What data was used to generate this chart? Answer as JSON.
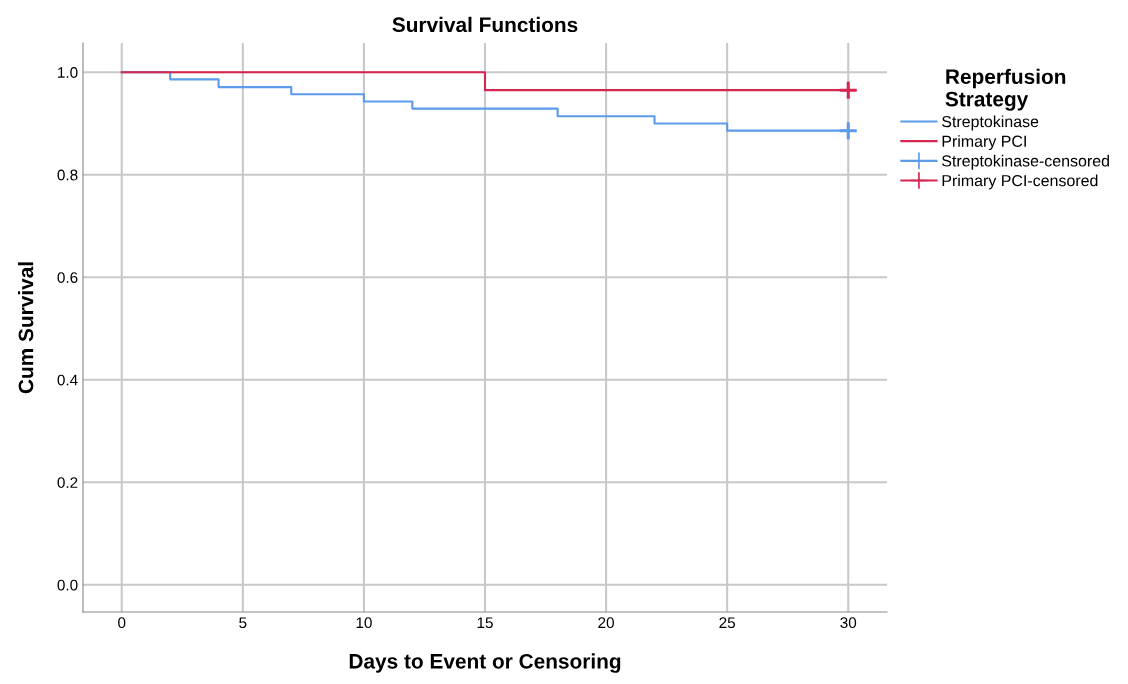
{
  "chart_data": {
    "type": "step",
    "title": "Survival Functions",
    "xlabel": "Days to Event or Censoring",
    "ylabel": "Cum Survival",
    "legend_title": "Reperfusion\nStrategy",
    "series": [
      {
        "name": "Streptokinase",
        "color": "#5b9bea",
        "x": [
          0,
          2,
          4,
          7,
          10,
          12,
          18,
          22,
          25,
          30
        ],
        "values": [
          1.0,
          0.986,
          0.971,
          0.957,
          0.943,
          0.929,
          0.914,
          0.9,
          0.886,
          0.886
        ]
      },
      {
        "name": "Primary PCI",
        "color": "#d6264f",
        "x": [
          0,
          15,
          30
        ],
        "values": [
          1.0,
          0.965,
          0.965
        ]
      },
      {
        "name": "Streptokinase-censored",
        "type": "scatter",
        "marker": "cross",
        "color": "#5b9bea",
        "x": [
          30
        ],
        "values": [
          0.886
        ]
      },
      {
        "name": "Primary PCI-censored",
        "type": "scatter",
        "marker": "cross",
        "color": "#d6264f",
        "x": [
          30
        ],
        "values": [
          0.965
        ]
      }
    ],
    "xlim": [
      -1.6,
      31.6
    ],
    "ylim": [
      -0.053,
      1.057
    ],
    "xticks": [
      0,
      5,
      10,
      15,
      20,
      25,
      30
    ],
    "yticks": [
      {
        "value": 0,
        "label": "0.0"
      },
      {
        "value": 0.2,
        "label": "0.2"
      },
      {
        "value": 0.4,
        "label": "0.4"
      },
      {
        "value": 0.6,
        "label": "0.6"
      },
      {
        "value": 0.8,
        "label": "0.8"
      },
      {
        "value": 1.0,
        "label": "1.0"
      }
    ],
    "grid": true,
    "legend": "right"
  }
}
